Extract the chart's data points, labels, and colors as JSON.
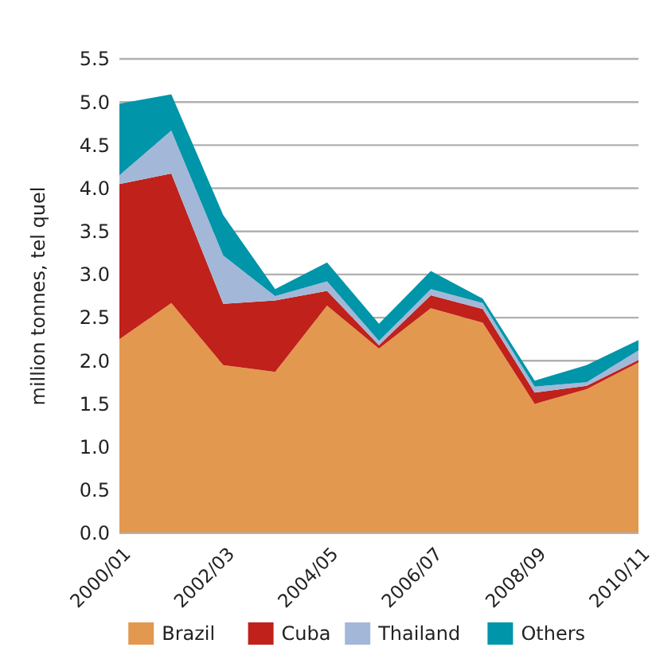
{
  "chart_data": {
    "type": "area",
    "stacked": true,
    "ylabel": "million tonnes, tel quel",
    "categories": [
      "2000/01",
      null,
      "2002/03",
      null,
      "2004/05",
      null,
      "2006/07",
      null,
      "2008/09",
      null,
      "2010/11"
    ],
    "series": [
      {
        "name": "Brazil",
        "color": "#e3984f",
        "values": [
          2.25,
          2.67,
          1.95,
          1.87,
          2.64,
          2.14,
          2.61,
          2.44,
          1.5,
          1.67,
          1.98
        ]
      },
      {
        "name": "Cuba",
        "color": "#c0211a",
        "values": [
          1.8,
          1.5,
          0.71,
          0.83,
          0.17,
          0.04,
          0.15,
          0.16,
          0.13,
          0.04,
          0.03
        ]
      },
      {
        "name": "Thailand",
        "color": "#a3b8d8",
        "values": [
          0.1,
          0.5,
          0.56,
          0.05,
          0.11,
          0.05,
          0.07,
          0.07,
          0.07,
          0.04,
          0.11
        ]
      },
      {
        "name": "Others",
        "color": "#0095a8",
        "values": [
          0.83,
          0.42,
          0.47,
          0.08,
          0.22,
          0.2,
          0.21,
          0.05,
          0.07,
          0.2,
          0.12
        ]
      }
    ],
    "ylim": [
      0,
      5.5
    ],
    "yticks": [
      {
        "value": 0,
        "label": "0.0"
      },
      0.5,
      {
        "value": 1,
        "label": "1.0"
      },
      1.5,
      {
        "value": 2,
        "label": "2.0"
      },
      2.5,
      {
        "value": 3,
        "label": "3.0"
      },
      3.5,
      {
        "value": 4,
        "label": "4.0"
      },
      4.5,
      {
        "value": 5,
        "label": "5.0"
      },
      5.5
    ],
    "grid": "y",
    "legend": "bottom"
  }
}
